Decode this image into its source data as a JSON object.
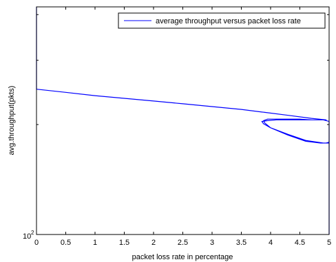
{
  "chart_data": {
    "type": "line",
    "xlabel": "packet loss rate in percentage",
    "ylabel": "avg.throughput(pkts)",
    "xlim": [
      0,
      5
    ],
    "ylim": [
      100,
      420
    ],
    "y_scale": "log",
    "x_ticks": [
      "0",
      "0.5",
      "1",
      "1.5",
      "2",
      "2.5",
      "3",
      "3.5",
      "4",
      "4.5",
      "5"
    ],
    "y_ticks": [
      "10",
      "2"
    ],
    "legend_position": "top-right",
    "grid": false,
    "series": [
      {
        "name": "average throughput versus packet loss rate",
        "color": "#0000ff",
        "x": [
          0,
          0,
          0.5,
          1,
          1.5,
          2,
          2.5,
          3,
          3.5,
          3.9,
          4.3,
          4.7,
          4.95,
          4.9,
          4.7,
          4.5,
          4.3,
          4.1,
          3.95,
          3.88,
          3.9,
          4.0,
          4.3,
          4.6,
          4.85,
          4.95,
          5,
          5,
          4.9,
          4.7,
          4.6,
          4.5,
          4.3,
          4.1,
          3.95,
          3.85,
          3.88,
          4.0,
          4.3,
          4.6,
          4.9,
          5,
          5
        ],
        "y": [
          420,
          250,
          245,
          240,
          236,
          232,
          228,
          224,
          220,
          216,
          212,
          208,
          206,
          206,
          206,
          207,
          207,
          207,
          207,
          205,
          202,
          196,
          187,
          180,
          178,
          178,
          179,
          204,
          206,
          206,
          206,
          206,
          206,
          206,
          205,
          204,
          201,
          196,
          188,
          181,
          178,
          178,
          100
        ]
      }
    ]
  }
}
